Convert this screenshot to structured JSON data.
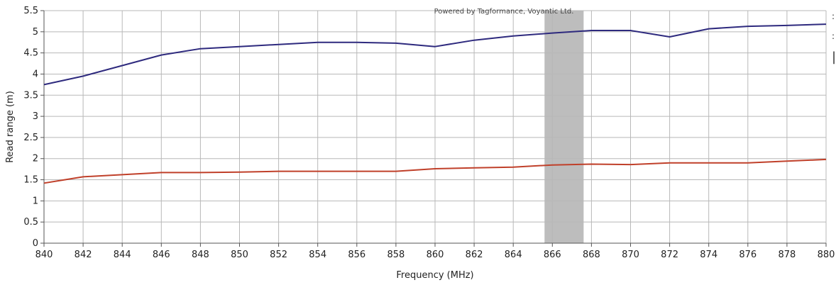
{
  "chart_data": {
    "type": "line",
    "title": "",
    "xlabel": "Frequency (MHz)",
    "ylabel": "Read range (m)",
    "xlim": [
      840,
      880
    ],
    "ylim": [
      0,
      5.5
    ],
    "xticks": [
      840,
      842,
      844,
      846,
      848,
      850,
      852,
      854,
      856,
      858,
      860,
      862,
      864,
      866,
      868,
      870,
      872,
      874,
      876,
      878,
      880
    ],
    "xtick_labels": [
      "840",
      "842",
      "844",
      "846",
      "848",
      "850",
      "852",
      "854",
      "856",
      "858",
      "860",
      "862",
      "864",
      "866",
      "868",
      "870",
      "872",
      "874",
      "876",
      "878",
      "880"
    ],
    "yticks": [
      0,
      0.5,
      1,
      1.5,
      2,
      2.5,
      3,
      3.5,
      4,
      4.5,
      5,
      5.5
    ],
    "ytick_labels": [
      "0",
      "0.5",
      "1",
      "1.5",
      "2",
      "2.5",
      "3",
      "3.5",
      "4",
      "4.5",
      "5",
      "5.5"
    ],
    "grid": true,
    "highlight_band": {
      "x0": 865.6,
      "x1": 867.6,
      "color": "#bdbdbd"
    },
    "x": [
      840,
      842,
      844,
      846,
      848,
      850,
      852,
      854,
      856,
      858,
      860,
      862,
      864,
      866,
      868,
      870,
      872,
      874,
      876,
      878,
      880
    ],
    "series": [
      {
        "color": "#2e2a7e",
        "values": [
          3.75,
          3.95,
          4.2,
          4.45,
          4.6,
          4.65,
          4.7,
          4.75,
          4.75,
          4.73,
          4.65,
          4.8,
          4.9,
          4.97,
          5.03,
          5.03,
          4.88,
          5.07,
          5.13,
          5.15,
          5.18
        ]
      },
      {
        "color": "#c0402a",
        "values": [
          1.42,
          1.57,
          1.62,
          1.67,
          1.67,
          1.68,
          1.7,
          1.7,
          1.7,
          1.7,
          1.76,
          1.78,
          1.8,
          1.85,
          1.87,
          1.86,
          1.9,
          1.9,
          1.9,
          1.94,
          1.98
        ]
      }
    ],
    "watermark": "Powered by Tagformance, Voyantic Ltd."
  },
  "legend_fragments": [
    ":",
    ":",
    "|"
  ]
}
